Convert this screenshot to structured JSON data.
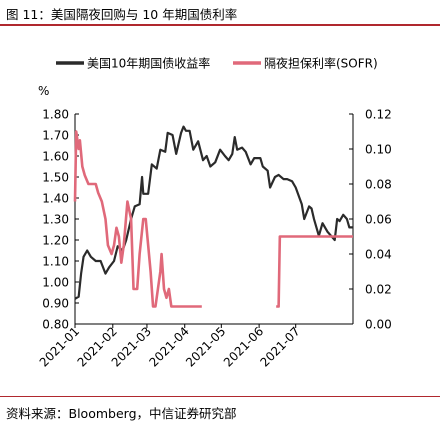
{
  "figure_title": "图 11：美国隔夜回购与 10 年期国债利率",
  "source_note": "资料来源：Bloomberg，中信证券研究部",
  "colors": {
    "accent_rule": "#b0282e",
    "series_10y": "#2b2b2b",
    "series_sofr": "#e0697a"
  },
  "chart_data": {
    "type": "line",
    "left_axis": {
      "unit": "%",
      "ylim": [
        0.8,
        1.8
      ],
      "ticks": [
        "1.80",
        "1.70",
        "1.60",
        "1.50",
        "1.40",
        "1.30",
        "1.20",
        "1.10",
        "1.00",
        "0.90",
        "0.80"
      ]
    },
    "right_axis": {
      "ylim": [
        0.0,
        0.12
      ],
      "ticks": [
        "0.12",
        "0.10",
        "0.08",
        "0.06",
        "0.04",
        "0.02",
        "0.00"
      ]
    },
    "x_axis": {
      "type": "date",
      "range": [
        "2021-01-01",
        "2021-08-17"
      ],
      "tick_labels": [
        "2021-01",
        "2021-02",
        "2021-03",
        "2021-04",
        "2021-05",
        "2021-06",
        "2021-07"
      ]
    },
    "grid": false,
    "legend": "top",
    "series": [
      {
        "name": "美国10年期国债收益率",
        "axis": "left",
        "points": [
          [
            "2021-01-01",
            0.92
          ],
          [
            "2021-01-04",
            0.93
          ],
          [
            "2021-01-06",
            1.04
          ],
          [
            "2021-01-08",
            1.12
          ],
          [
            "2021-01-11",
            1.15
          ],
          [
            "2021-01-14",
            1.12
          ],
          [
            "2021-01-18",
            1.1
          ],
          [
            "2021-01-22",
            1.1
          ],
          [
            "2021-01-26",
            1.04
          ],
          [
            "2021-01-29",
            1.07
          ],
          [
            "2021-02-02",
            1.1
          ],
          [
            "2021-02-05",
            1.17
          ],
          [
            "2021-02-09",
            1.15
          ],
          [
            "2021-02-12",
            1.2
          ],
          [
            "2021-02-16",
            1.3
          ],
          [
            "2021-02-19",
            1.36
          ],
          [
            "2021-02-23",
            1.37
          ],
          [
            "2021-02-25",
            1.5
          ],
          [
            "2021-02-26",
            1.42
          ],
          [
            "2021-03-02",
            1.42
          ],
          [
            "2021-03-05",
            1.56
          ],
          [
            "2021-03-09",
            1.54
          ],
          [
            "2021-03-12",
            1.63
          ],
          [
            "2021-03-16",
            1.62
          ],
          [
            "2021-03-18",
            1.71
          ],
          [
            "2021-03-22",
            1.7
          ],
          [
            "2021-03-25",
            1.61
          ],
          [
            "2021-03-29",
            1.71
          ],
          [
            "2021-03-31",
            1.74
          ],
          [
            "2021-04-02",
            1.72
          ],
          [
            "2021-04-05",
            1.72
          ],
          [
            "2021-04-08",
            1.63
          ],
          [
            "2021-04-12",
            1.67
          ],
          [
            "2021-04-16",
            1.58
          ],
          [
            "2021-04-19",
            1.6
          ],
          [
            "2021-04-22",
            1.55
          ],
          [
            "2021-04-26",
            1.57
          ],
          [
            "2021-04-30",
            1.63
          ],
          [
            "2021-05-04",
            1.6
          ],
          [
            "2021-05-07",
            1.58
          ],
          [
            "2021-05-10",
            1.61
          ],
          [
            "2021-05-12",
            1.69
          ],
          [
            "2021-05-14",
            1.63
          ],
          [
            "2021-05-18",
            1.64
          ],
          [
            "2021-05-21",
            1.62
          ],
          [
            "2021-05-25",
            1.56
          ],
          [
            "2021-05-28",
            1.59
          ],
          [
            "2021-06-02",
            1.59
          ],
          [
            "2021-06-04",
            1.55
          ],
          [
            "2021-06-08",
            1.53
          ],
          [
            "2021-06-10",
            1.45
          ],
          [
            "2021-06-14",
            1.5
          ],
          [
            "2021-06-17",
            1.51
          ],
          [
            "2021-06-21",
            1.49
          ],
          [
            "2021-06-24",
            1.49
          ],
          [
            "2021-06-28",
            1.48
          ],
          [
            "2021-07-01",
            1.45
          ],
          [
            "2021-07-06",
            1.37
          ],
          [
            "2021-07-08",
            1.3
          ],
          [
            "2021-07-12",
            1.36
          ],
          [
            "2021-07-14",
            1.35
          ],
          [
            "2021-07-16",
            1.3
          ],
          [
            "2021-07-20",
            1.22
          ],
          [
            "2021-07-23",
            1.28
          ],
          [
            "2021-07-27",
            1.24
          ],
          [
            "2021-07-30",
            1.22
          ],
          [
            "2021-08-02",
            1.2
          ],
          [
            "2021-08-04",
            1.3
          ],
          [
            "2021-08-06",
            1.29
          ],
          [
            "2021-08-09",
            1.32
          ],
          [
            "2021-08-12",
            1.3
          ],
          [
            "2021-08-14",
            1.26
          ],
          [
            "2021-08-17",
            1.26
          ]
        ]
      },
      {
        "name": "隔夜担保利率(SOFR)",
        "axis": "right",
        "points": [
          [
            "2021-01-01",
            0.07
          ],
          [
            "2021-01-02",
            0.11
          ],
          [
            "2021-01-04",
            0.1
          ],
          [
            "2021-01-05",
            0.105
          ],
          [
            "2021-01-07",
            0.09
          ],
          [
            "2021-01-09",
            0.085
          ],
          [
            "2021-01-12",
            0.08
          ],
          [
            "2021-01-15",
            0.08
          ],
          [
            "2021-01-18",
            0.08
          ],
          [
            "2021-01-20",
            0.075
          ],
          [
            "2021-01-23",
            0.07
          ],
          [
            "2021-01-26",
            0.06
          ],
          [
            "2021-01-28",
            0.045
          ],
          [
            "2021-01-31",
            0.04
          ],
          [
            "2021-02-02",
            0.045
          ],
          [
            "2021-02-04",
            0.055
          ],
          [
            "2021-02-06",
            0.05
          ],
          [
            "2021-02-08",
            0.035
          ],
          [
            "2021-02-10",
            0.045
          ],
          [
            "2021-02-13",
            0.07
          ],
          [
            "2021-02-16",
            0.06
          ],
          [
            "2021-02-18",
            0.02
          ],
          [
            "2021-02-21",
            0.02
          ],
          [
            "2021-02-23",
            0.04
          ],
          [
            "2021-02-26",
            0.06
          ],
          [
            "2021-02-28",
            0.06
          ],
          [
            "2021-03-02",
            0.045
          ],
          [
            "2021-03-04",
            0.03
          ],
          [
            "2021-03-06",
            0.01
          ],
          [
            "2021-03-08",
            0.01
          ],
          [
            "2021-03-10",
            0.02
          ],
          [
            "2021-03-12",
            0.03
          ],
          [
            "2021-03-13",
            0.04
          ],
          [
            "2021-03-15",
            0.02
          ],
          [
            "2021-03-17",
            0.015
          ],
          [
            "2021-03-19",
            0.02
          ],
          [
            "2021-03-21",
            0.01
          ],
          [
            "2021-03-23",
            0.01
          ],
          [
            "2021-03-25",
            0.01
          ],
          [
            "2021-03-29",
            0.01
          ],
          [
            "2021-04-05",
            0.01
          ],
          [
            "2021-04-15",
            0.01
          ],
          [
            "2021-05-01",
            0.01
          ],
          [
            "2021-05-15",
            0.01
          ],
          [
            "2021-06-01",
            0.01
          ],
          [
            "2021-06-15",
            0.01
          ],
          [
            "2021-06-17",
            0.01
          ],
          [
            "2021-06-18",
            0.05
          ],
          [
            "2021-07-01",
            0.05
          ],
          [
            "2021-07-15",
            0.05
          ],
          [
            "2021-08-01",
            0.05
          ],
          [
            "2021-08-17",
            0.05
          ]
        ]
      }
    ]
  }
}
